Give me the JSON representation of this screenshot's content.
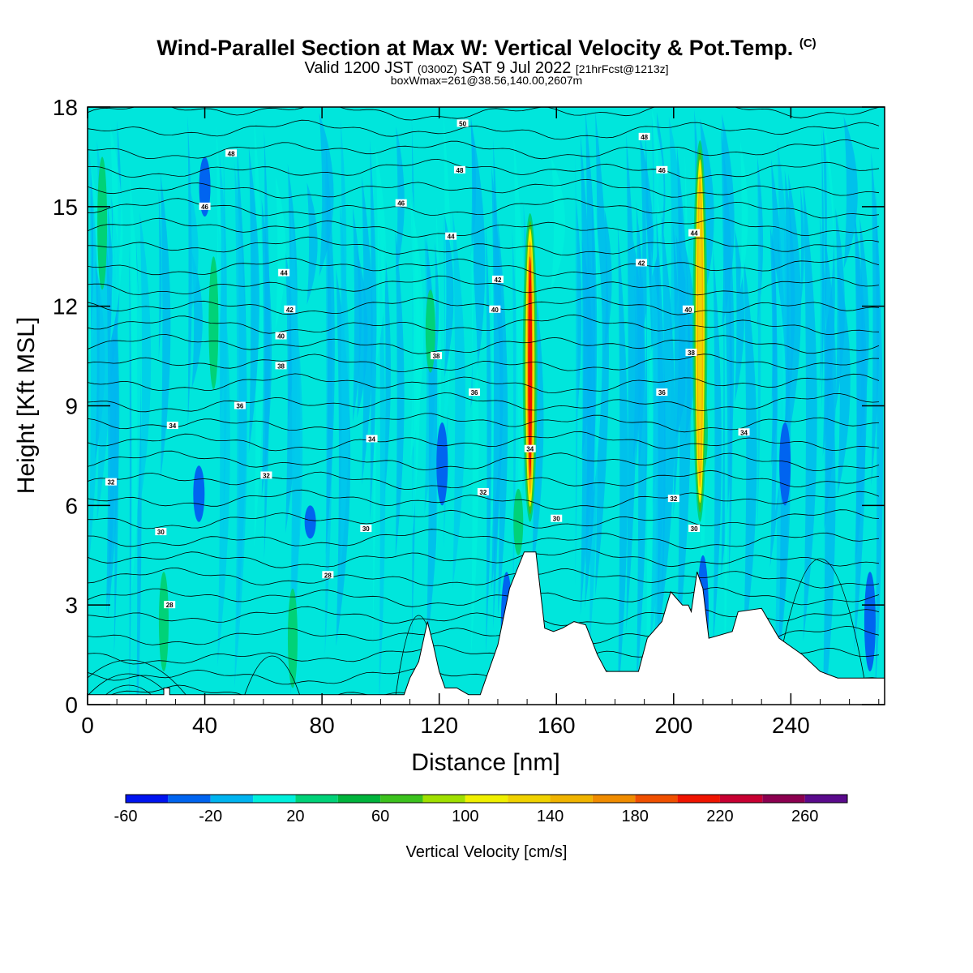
{
  "header": {
    "title": "Wind-Parallel Section at Max W: Vertical Velocity & Pot.Temp.",
    "copyright": "(C)",
    "valid_prefix": "Valid 1200 JST",
    "valid_utc": "(0300Z)",
    "valid_date": "SAT 9 Jul 2022",
    "forecast_info": "[21hrFcst@1213z]",
    "box_info": "boxWmax=261@38.56,140.00,2607m"
  },
  "chart_data": {
    "type": "heatmap",
    "title": "Wind-Parallel Section at Max W: Vertical Velocity & Pot.Temp.",
    "xlabel": "Distance [nm]",
    "ylabel": "Height [Kft MSL]",
    "xlim": [
      0,
      272
    ],
    "ylim": [
      0,
      18
    ],
    "x_ticks": [
      0,
      40,
      80,
      120,
      160,
      200,
      240
    ],
    "y_ticks": [
      0,
      3,
      6,
      9,
      12,
      15,
      18
    ],
    "x_tick_labels": [
      "0",
      "40",
      "80",
      "120",
      "160",
      "200",
      "240"
    ],
    "y_tick_labels": [
      "0",
      "3",
      "6",
      "9",
      "12",
      "15",
      "18"
    ],
    "colorbar": {
      "label": "Vertical Velocity [cm/s]",
      "tick_values": [
        -60,
        -20,
        20,
        60,
        100,
        140,
        180,
        220,
        260
      ],
      "tick_labels": [
        "-60",
        "-20",
        "20",
        "60",
        "100",
        "140",
        "180",
        "220",
        "260"
      ],
      "bounds": [
        -60,
        -40,
        -20,
        0,
        20,
        40,
        60,
        80,
        100,
        120,
        140,
        160,
        180,
        200,
        220,
        240,
        260,
        280
      ],
      "colors": [
        "#0014f0",
        "#0064f0",
        "#00b4f0",
        "#00f0dc",
        "#00d278",
        "#00b43c",
        "#3cc21e",
        "#a0e000",
        "#f0f000",
        "#f0d200",
        "#f0b400",
        "#f08c00",
        "#f05000",
        "#f01400",
        "#c80032",
        "#8c0050",
        "#5a0a8c"
      ]
    },
    "updrafts": [
      {
        "x": 151,
        "base_kft": 5.5,
        "top_kft": 14.8,
        "max_w_cm_s": 261
      },
      {
        "x": 209,
        "base_kft": 5.5,
        "top_kft": 17.0,
        "max_w_cm_s": 150
      }
    ],
    "theta_contour_labels": [
      {
        "x": 8,
        "y": 6.7,
        "value": "32"
      },
      {
        "x": 25,
        "y": 5.2,
        "value": "30"
      },
      {
        "x": 28,
        "y": 3.0,
        "value": "28"
      },
      {
        "x": 29,
        "y": 8.4,
        "value": "34"
      },
      {
        "x": 52,
        "y": 9.0,
        "value": "36"
      },
      {
        "x": 61,
        "y": 6.9,
        "value": "32"
      },
      {
        "x": 66,
        "y": 10.2,
        "value": "38"
      },
      {
        "x": 66,
        "y": 11.1,
        "value": "40"
      },
      {
        "x": 69,
        "y": 11.9,
        "value": "42"
      },
      {
        "x": 67,
        "y": 13.0,
        "value": "44"
      },
      {
        "x": 40,
        "y": 15.0,
        "value": "46"
      },
      {
        "x": 49,
        "y": 16.6,
        "value": "48"
      },
      {
        "x": 82,
        "y": 3.9,
        "value": "28"
      },
      {
        "x": 95,
        "y": 5.3,
        "value": "30"
      },
      {
        "x": 97,
        "y": 8.0,
        "value": "34"
      },
      {
        "x": 107,
        "y": 15.1,
        "value": "46"
      },
      {
        "x": 119,
        "y": 10.5,
        "value": "38"
      },
      {
        "x": 124,
        "y": 14.1,
        "value": "44"
      },
      {
        "x": 127,
        "y": 16.1,
        "value": "48"
      },
      {
        "x": 128,
        "y": 17.5,
        "value": "50"
      },
      {
        "x": 132,
        "y": 9.4,
        "value": "36"
      },
      {
        "x": 135,
        "y": 6.4,
        "value": "32"
      },
      {
        "x": 139,
        "y": 11.9,
        "value": "40"
      },
      {
        "x": 140,
        "y": 12.8,
        "value": "42"
      },
      {
        "x": 151,
        "y": 7.7,
        "value": "34"
      },
      {
        "x": 160,
        "y": 5.6,
        "value": "30"
      },
      {
        "x": 190,
        "y": 17.1,
        "value": "48"
      },
      {
        "x": 196,
        "y": 16.1,
        "value": "46"
      },
      {
        "x": 189,
        "y": 13.3,
        "value": "42"
      },
      {
        "x": 196,
        "y": 9.4,
        "value": "36"
      },
      {
        "x": 200,
        "y": 6.2,
        "value": "32"
      },
      {
        "x": 207,
        "y": 14.2,
        "value": "44"
      },
      {
        "x": 205,
        "y": 11.9,
        "value": "40"
      },
      {
        "x": 206,
        "y": 10.6,
        "value": "38"
      },
      {
        "x": 207,
        "y": 5.3,
        "value": "30"
      },
      {
        "x": 224,
        "y": 8.2,
        "value": "34"
      }
    ]
  }
}
